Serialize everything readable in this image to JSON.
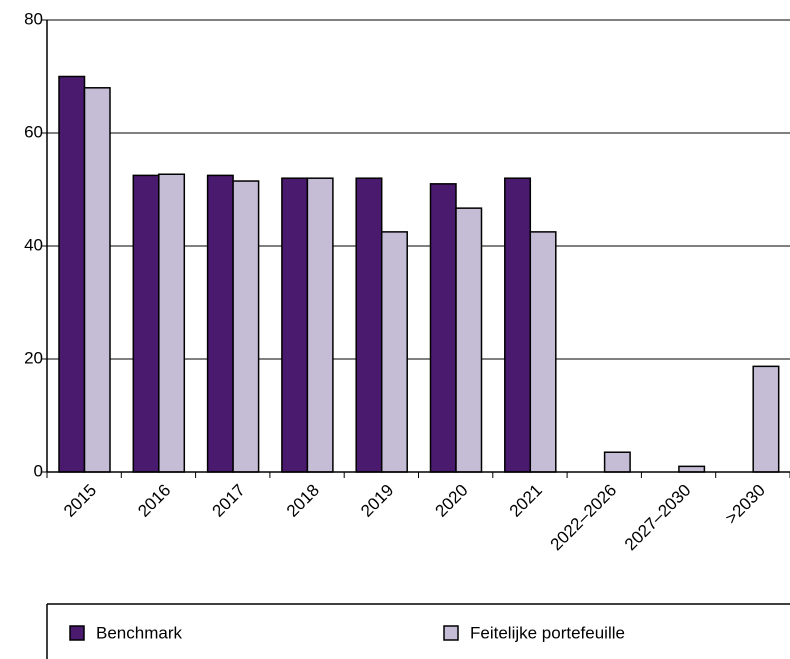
{
  "chart_data": {
    "type": "bar",
    "categories": [
      "2015",
      "2016",
      "2017",
      "2018",
      "2019",
      "2020",
      "2021",
      "2022–2026",
      "2027–2030",
      ">2030"
    ],
    "series": [
      {
        "name": "Benchmark",
        "color": "#4a1a6e",
        "values": [
          70,
          52.5,
          52.5,
          52,
          52,
          51,
          52,
          0,
          0,
          0
        ]
      },
      {
        "name": "Feitelijke portefeuille",
        "color": "#c5bcd6",
        "values": [
          68,
          52.7,
          51.5,
          52,
          42.5,
          46.7,
          42.5,
          3.5,
          1,
          18.7
        ]
      }
    ],
    "ylim": [
      0,
      80
    ],
    "yticks": [
      0,
      20,
      40,
      60,
      80
    ],
    "grid": true
  }
}
